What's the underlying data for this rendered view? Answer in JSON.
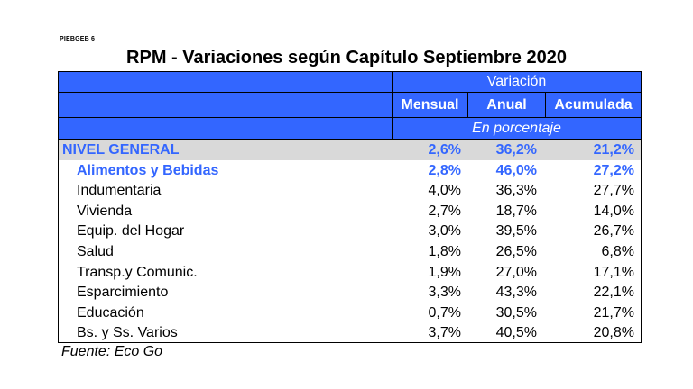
{
  "doc_code": "PIEBGEB 6",
  "title": "RPM - Variaciones según Capítulo Septiembre 2020",
  "table": {
    "group_header": "Variación",
    "columns": [
      "Mensual",
      "Anual",
      "Acumulada"
    ],
    "unit_note": "En porcentaje",
    "rows": [
      {
        "label": "NIVEL GENERAL",
        "mensual": "2,6%",
        "anual": "36,2%",
        "acumulada": "21,2%"
      },
      {
        "label": "Alimentos y Bebidas",
        "mensual": "2,8%",
        "anual": "46,0%",
        "acumulada": "27,2%"
      },
      {
        "label": "Indumentaria",
        "mensual": "4,0%",
        "anual": "36,3%",
        "acumulada": "27,7%"
      },
      {
        "label": "Vivienda",
        "mensual": "2,7%",
        "anual": "18,7%",
        "acumulada": "14,0%"
      },
      {
        "label": "Equip. del Hogar",
        "mensual": "3,0%",
        "anual": "39,5%",
        "acumulada": "26,7%"
      },
      {
        "label": "Salud",
        "mensual": "1,8%",
        "anual": "26,5%",
        "acumulada": "6,8%"
      },
      {
        "label": "Transp.y Comunic.",
        "mensual": "1,9%",
        "anual": "27,0%",
        "acumulada": "17,1%"
      },
      {
        "label": "Esparcimiento",
        "mensual": "3,3%",
        "anual": "43,3%",
        "acumulada": "22,1%"
      },
      {
        "label": "Educación",
        "mensual": "0,7%",
        "anual": "30,5%",
        "acumulada": "21,7%"
      },
      {
        "label": "Bs. y Ss. Varios",
        "mensual": "3,7%",
        "anual": "40,5%",
        "acumulada": "20,8%"
      }
    ]
  },
  "colors": {
    "header_bg": "#3366ff",
    "highlight_text": "#3366ff",
    "general_row_bg": "#d9d9d9"
  },
  "source": "Fuente: Eco Go"
}
